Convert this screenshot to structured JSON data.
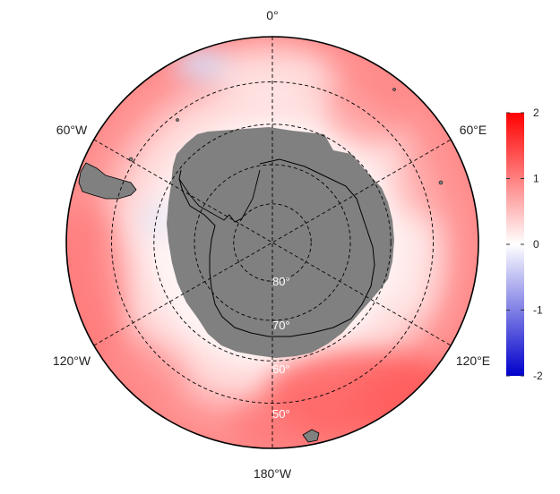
{
  "map": {
    "projection": "south-polar-stereographic",
    "longitude_labels": {
      "top": "0°",
      "upper_left": "60°W",
      "upper_right": "60°E",
      "lower_left": "120°W",
      "lower_right": "120°E",
      "bottom": "180°W"
    },
    "latitude_labels": [
      "80°",
      "70°",
      "60°",
      "50°"
    ],
    "latitude_circles_deg": [
      80,
      70,
      60,
      50
    ],
    "land_color": "#808080",
    "gridline_style": "dashed black"
  },
  "colorbar": {
    "ticks": [
      "2",
      "1",
      "0",
      "-1",
      "-2"
    ],
    "tick_values": [
      2,
      1,
      0,
      -1,
      -2
    ],
    "min": -2,
    "max": 2,
    "colors": {
      "high": "#ff0000",
      "mid": "#ffffff",
      "low": "#0000cc"
    }
  }
}
